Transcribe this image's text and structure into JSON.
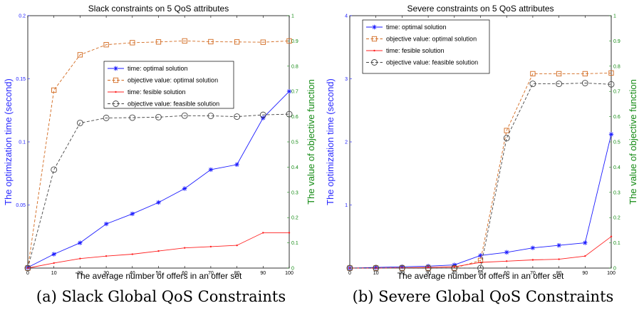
{
  "chart_data": [
    {
      "type": "line",
      "title": "Slack constraints on 5 QoS attributes",
      "xlabel": "The average number of offers in an offer set",
      "ylabel": "The optimization time (second)",
      "ylabel_right": "The value of objective function",
      "caption": "(a) Slack Global QoS Constraints",
      "x": [
        0,
        10,
        20,
        30,
        40,
        50,
        60,
        70,
        80,
        90,
        100
      ],
      "xlim": [
        0,
        100
      ],
      "ylim": [
        0,
        0.2
      ],
      "ylim_right": [
        0,
        1
      ],
      "x_ticks": [
        "0",
        "10",
        "20",
        "30",
        "40",
        "50",
        "60",
        "70",
        "80",
        "90",
        "100"
      ],
      "y_ticks": [
        "",
        "0.05",
        "0.1",
        "0.15",
        "0.2"
      ],
      "y_right_ticks": [
        "0",
        "0.1",
        "0.2",
        "0.3",
        "0.4",
        "0.5",
        "0.6",
        "0.7",
        "0.8",
        "0.9",
        "1"
      ],
      "grid": false,
      "legend_position": "upper-center",
      "series": [
        {
          "name": "time: optimal solution",
          "axis": "left",
          "color": "#1a1aff",
          "marker": "star",
          "dash": "solid",
          "values": [
            0.0005,
            0.011,
            0.02,
            0.035,
            0.043,
            0.052,
            0.063,
            0.078,
            0.082,
            0.119,
            0.14
          ]
        },
        {
          "name": "objective value: optimal solution",
          "axis": "right",
          "color": "#d2691e",
          "marker": "square",
          "dash": "dashed",
          "values": [
            0.0,
            0.705,
            0.845,
            0.885,
            0.893,
            0.896,
            0.9,
            0.897,
            0.896,
            0.895,
            0.9
          ]
        },
        {
          "name": "time: fesible solution",
          "axis": "left",
          "color": "#ff2020",
          "marker": "dot",
          "dash": "solid",
          "values": [
            0.0,
            0.004,
            0.0075,
            0.0095,
            0.011,
            0.0135,
            0.016,
            0.017,
            0.018,
            0.028,
            0.028
          ]
        },
        {
          "name": "objective value: feasible solution",
          "axis": "right",
          "color": "#444444",
          "marker": "circle",
          "dash": "dashed",
          "values": [
            0.0,
            0.39,
            0.575,
            0.595,
            0.596,
            0.598,
            0.604,
            0.603,
            0.6,
            0.607,
            0.61
          ]
        }
      ]
    },
    {
      "type": "line",
      "title": "Severe constraints on 5 QoS attributes",
      "xlabel": "The average number of offers in an offer set",
      "ylabel": "The optimization time (second)",
      "ylabel_right": "The value of objective function",
      "caption": "(b) Severe Global QoS Constraints",
      "x": [
        0,
        10,
        20,
        30,
        40,
        50,
        60,
        70,
        80,
        90,
        100
      ],
      "xlim": [
        0,
        100
      ],
      "ylim": [
        0,
        4
      ],
      "ylim_right": [
        0,
        1
      ],
      "x_ticks": [
        "0",
        "10",
        "20",
        "30",
        "40",
        "50",
        "60",
        "70",
        "80",
        "90",
        "100"
      ],
      "y_ticks": [
        "",
        "1",
        "2",
        "3",
        "4"
      ],
      "y_right_ticks": [
        "0",
        "0.1",
        "0.2",
        "0.3",
        "0.4",
        "0.5",
        "0.6",
        "0.7",
        "0.8",
        "0.9",
        "1"
      ],
      "grid": false,
      "legend_position": "upper-left",
      "series": [
        {
          "name": "time: optimal solution",
          "axis": "left",
          "color": "#1a1aff",
          "marker": "star",
          "dash": "solid",
          "values": [
            0.0,
            0.01,
            0.02,
            0.03,
            0.05,
            0.2,
            0.25,
            0.32,
            0.36,
            0.4,
            2.12
          ]
        },
        {
          "name": "objective value: optimal solution",
          "axis": "right",
          "color": "#d2691e",
          "marker": "square",
          "dash": "dashed",
          "values": [
            0.0,
            0.0,
            0.0,
            0.0,
            0.0,
            0.03,
            0.545,
            0.77,
            0.77,
            0.77,
            0.773
          ]
        },
        {
          "name": "time: fesible solution",
          "axis": "left",
          "color": "#ff2020",
          "marker": "dot",
          "dash": "solid",
          "values": [
            0.0,
            0.0,
            0.005,
            0.01,
            0.02,
            0.09,
            0.11,
            0.13,
            0.14,
            0.19,
            0.5
          ]
        },
        {
          "name": "objective value: feasible solution",
          "axis": "right",
          "color": "#444444",
          "marker": "circle",
          "dash": "dashed",
          "values": [
            0.0,
            0.0,
            0.0,
            0.0,
            0.0,
            0.0,
            0.515,
            0.73,
            0.73,
            0.733,
            0.728
          ]
        }
      ]
    }
  ]
}
